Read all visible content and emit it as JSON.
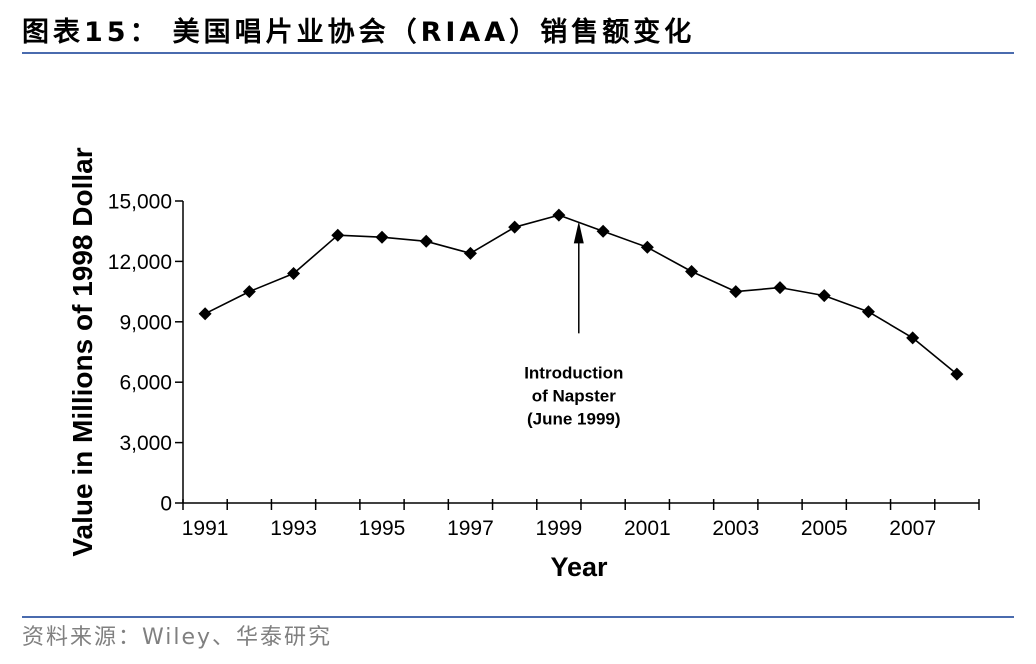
{
  "figure": {
    "label": "图表15：",
    "title": "美国唱片业协会（RIAA）销售额变化"
  },
  "source": "资料来源：Wiley、华泰研究",
  "colors": {
    "rule": "#4a6bae",
    "source_text": "#808080",
    "series_line": "#000000"
  },
  "chart_data": {
    "type": "line",
    "xlabel": "Year",
    "ylabel": "Value in Millions of 1998 Dollar",
    "x": [
      1991,
      1992,
      1993,
      1994,
      1995,
      1996,
      1997,
      1998,
      1999,
      2000,
      2001,
      2002,
      2003,
      2004,
      2005,
      2006,
      2007,
      2008
    ],
    "series": [
      {
        "values": [
          9400,
          10500,
          11400,
          13300,
          13200,
          13000,
          12400,
          13700,
          14300,
          13500,
          12700,
          11500,
          10500,
          10700,
          10300,
          9500,
          8200,
          6400
        ]
      }
    ],
    "xlim": [
      1990.5,
      2008.5
    ],
    "ylim": [
      0,
      15000
    ],
    "xticks": [
      1991,
      1993,
      1995,
      1997,
      1999,
      2001,
      2003,
      2005,
      2007
    ],
    "xtick_labels": [
      "1991",
      "1993",
      "1995",
      "1997",
      "1999",
      "2001",
      "2003",
      "2005",
      "2007"
    ],
    "yticks": [
      0,
      3000,
      6000,
      9000,
      12000,
      15000
    ],
    "ytick_labels": [
      "0",
      "3,000",
      "6,000",
      "9,000",
      "12,000",
      "15,000"
    ],
    "grid": false,
    "annotations": [
      {
        "x": 1999.45,
        "text_lines": [
          "Introduction",
          "of Napster",
          "(June 1999)"
        ]
      }
    ]
  }
}
